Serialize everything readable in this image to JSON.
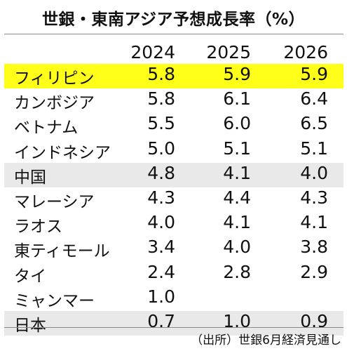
{
  "chart_data": {
    "type": "table",
    "title": "世銀・東南アジア予想成長率（%）",
    "columns": [
      "2024",
      "2025",
      "2026"
    ],
    "rows": [
      {
        "name": "フィリピン",
        "values": [
          "5.8",
          "5.9",
          "5.9"
        ],
        "highlight": "yellow"
      },
      {
        "name": "カンボジア",
        "values": [
          "5.8",
          "6.1",
          "6.4"
        ],
        "highlight": ""
      },
      {
        "name": "ベトナム",
        "values": [
          "5.5",
          "6.0",
          "6.5"
        ],
        "highlight": ""
      },
      {
        "name": "インドネシア",
        "values": [
          "5.0",
          "5.1",
          "5.1"
        ],
        "highlight": ""
      },
      {
        "name": "中国",
        "values": [
          "4.8",
          "4.1",
          "4.0"
        ],
        "highlight": "gray"
      },
      {
        "name": "マレーシア",
        "values": [
          "4.3",
          "4.4",
          "4.3"
        ],
        "highlight": ""
      },
      {
        "name": "ラオス",
        "values": [
          "4.0",
          "4.1",
          "4.1"
        ],
        "highlight": ""
      },
      {
        "name": "東ティモール",
        "values": [
          "3.4",
          "4.0",
          "3.8"
        ],
        "highlight": ""
      },
      {
        "name": "タイ",
        "values": [
          "2.4",
          "2.8",
          "2.9"
        ],
        "highlight": ""
      },
      {
        "name": "ミャンマー",
        "values": [
          "1.0",
          "",
          ""
        ],
        "highlight": ""
      },
      {
        "name": "日本",
        "values": [
          "0.7",
          "1.0",
          "0.9"
        ],
        "highlight": "gray"
      }
    ],
    "source": "（出所）世銀6月経済見通し"
  },
  "colors": {
    "highlight_yellow": "#ffff1a",
    "highlight_gray": "#e9e9e9",
    "rule": "#8a8a8a"
  }
}
